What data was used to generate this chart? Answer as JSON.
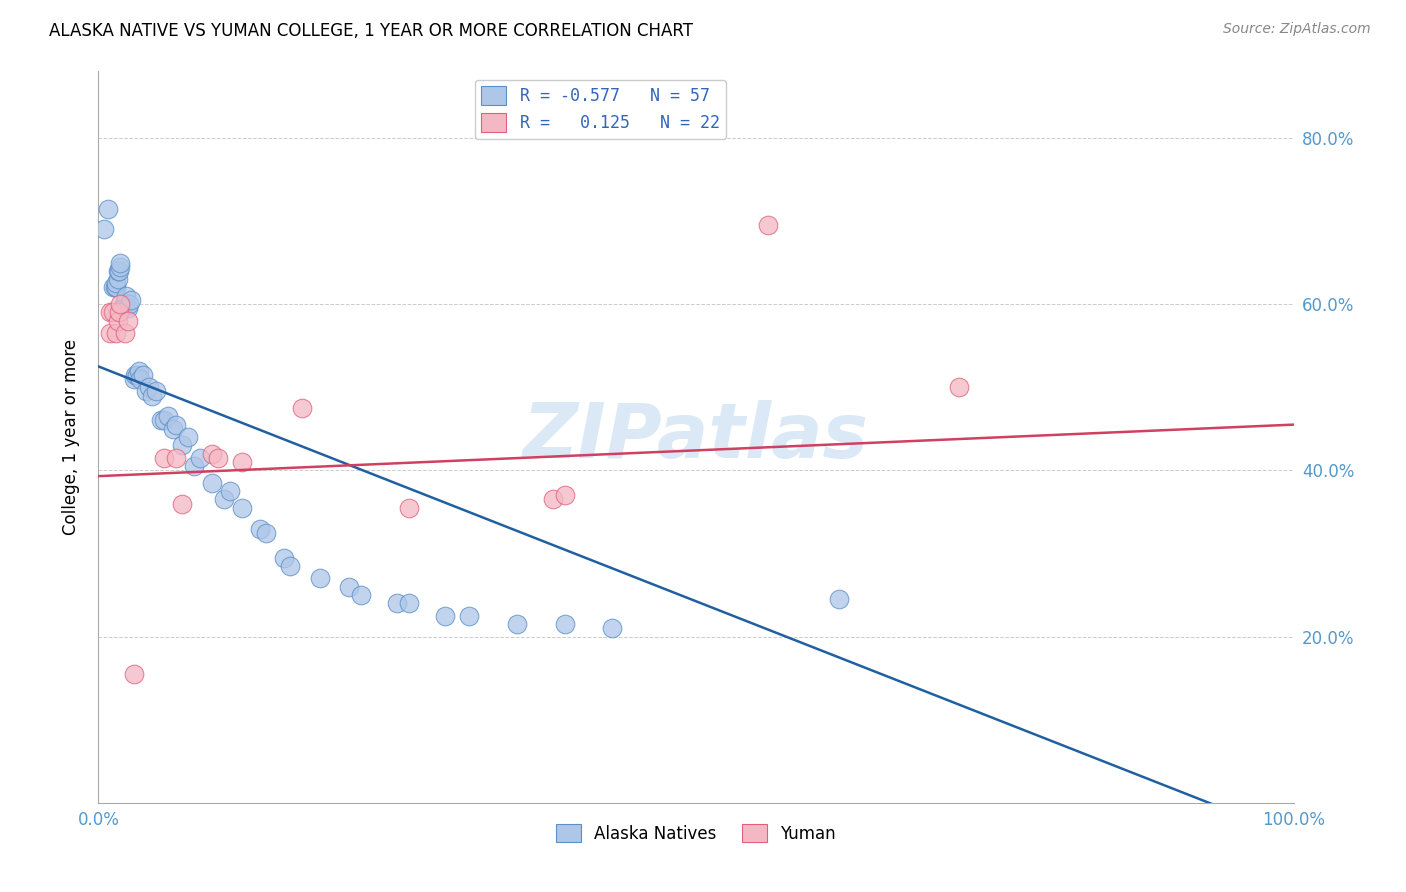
{
  "title": "ALASKA NATIVE VS YUMAN COLLEGE, 1 YEAR OR MORE CORRELATION CHART",
  "source": "Source: ZipAtlas.com",
  "ylabel": "College, 1 year or more",
  "xlim": [
    0.0,
    1.0
  ],
  "ylim": [
    0.0,
    0.88
  ],
  "blue_color": "#aec6e8",
  "blue_edge_color": "#5b8fc9",
  "pink_color": "#f4b8c4",
  "pink_edge_color": "#e0607a",
  "blue_line_color": "#2060a0",
  "pink_line_color": "#d04060",
  "watermark_color": "#b8d4ee",
  "blue_line_x": [
    0.0,
    1.0
  ],
  "blue_line_y": [
    0.525,
    -0.04
  ],
  "pink_line_x": [
    0.0,
    1.0
  ],
  "pink_line_y": [
    0.393,
    0.455
  ],
  "blue_scatter_x": [
    0.005,
    0.008,
    0.012,
    0.014,
    0.015,
    0.015,
    0.016,
    0.016,
    0.017,
    0.018,
    0.018,
    0.02,
    0.021,
    0.022,
    0.022,
    0.023,
    0.025,
    0.026,
    0.027,
    0.03,
    0.031,
    0.032,
    0.034,
    0.035,
    0.037,
    0.04,
    0.042,
    0.045,
    0.048,
    0.052,
    0.055,
    0.058,
    0.062,
    0.065,
    0.07,
    0.075,
    0.08,
    0.085,
    0.095,
    0.105,
    0.11,
    0.12,
    0.135,
    0.14,
    0.155,
    0.16,
    0.185,
    0.21,
    0.22,
    0.25,
    0.26,
    0.29,
    0.31,
    0.35,
    0.39,
    0.43,
    0.62
  ],
  "blue_scatter_y": [
    0.69,
    0.715,
    0.62,
    0.62,
    0.62,
    0.625,
    0.63,
    0.64,
    0.64,
    0.645,
    0.65,
    0.595,
    0.6,
    0.6,
    0.6,
    0.61,
    0.595,
    0.6,
    0.605,
    0.51,
    0.515,
    0.515,
    0.52,
    0.51,
    0.515,
    0.495,
    0.5,
    0.49,
    0.495,
    0.46,
    0.46,
    0.465,
    0.45,
    0.455,
    0.43,
    0.44,
    0.405,
    0.415,
    0.385,
    0.365,
    0.375,
    0.355,
    0.33,
    0.325,
    0.295,
    0.285,
    0.27,
    0.26,
    0.25,
    0.24,
    0.24,
    0.225,
    0.225,
    0.215,
    0.215,
    0.21,
    0.245
  ],
  "pink_scatter_x": [
    0.01,
    0.01,
    0.012,
    0.015,
    0.016,
    0.017,
    0.018,
    0.022,
    0.025,
    0.03,
    0.055,
    0.065,
    0.07,
    0.095,
    0.1,
    0.12,
    0.17,
    0.26,
    0.38,
    0.39,
    0.56,
    0.72
  ],
  "pink_scatter_y": [
    0.565,
    0.59,
    0.59,
    0.565,
    0.58,
    0.59,
    0.6,
    0.565,
    0.58,
    0.155,
    0.415,
    0.415,
    0.36,
    0.42,
    0.415,
    0.41,
    0.475,
    0.355,
    0.365,
    0.37,
    0.695,
    0.5
  ]
}
